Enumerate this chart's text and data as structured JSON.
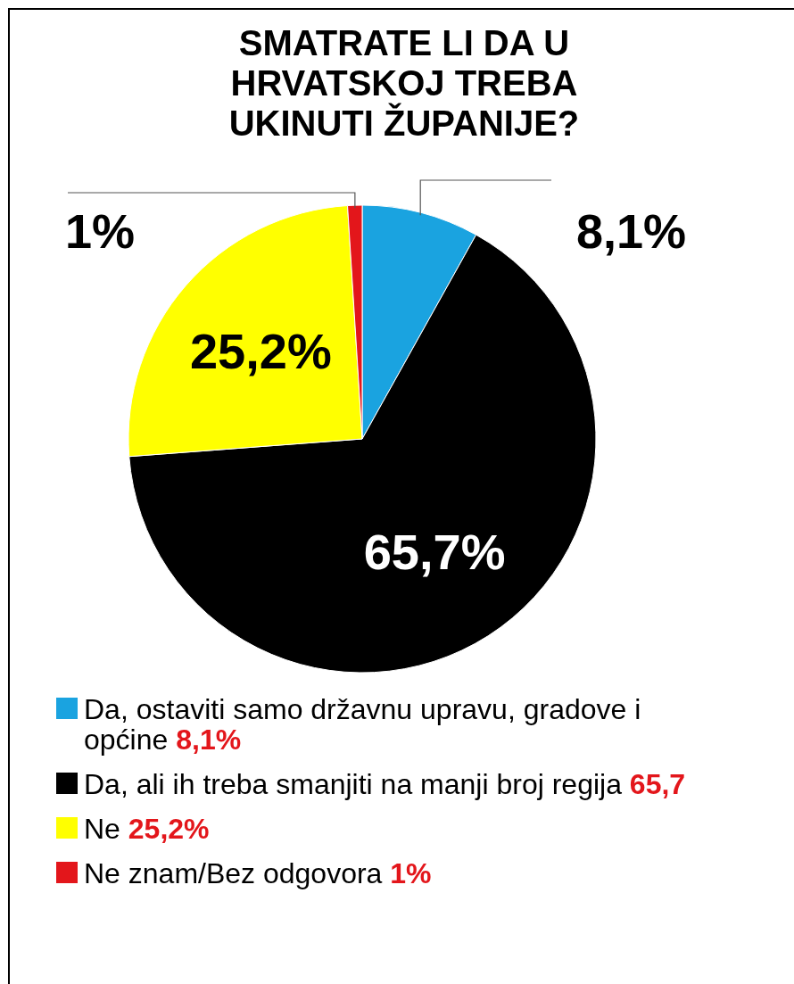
{
  "chart_data": {
    "type": "pie",
    "title": "SMATRATE LI DA U HRVATSKOJ TREBA UKINUTI ŽUPANIJE?",
    "categories": [
      "Da, ostaviti samo državnu upravu, gradove i općine",
      "Da, ali ih treba smanjiti na manji broj regija",
      "Ne",
      "Ne znam/Bez odgovora"
    ],
    "values": [
      8.1,
      65.7,
      25.2,
      1
    ],
    "colors": [
      "#1aa3e0",
      "#000000",
      "#ffff00",
      "#e3161b"
    ],
    "value_labels": [
      "8,1%",
      "65,7%",
      "25,2%",
      "1%"
    ],
    "annotations": [
      "8,1%",
      "65,7",
      "25,2%",
      "1%"
    ],
    "legend": "bottom"
  }
}
